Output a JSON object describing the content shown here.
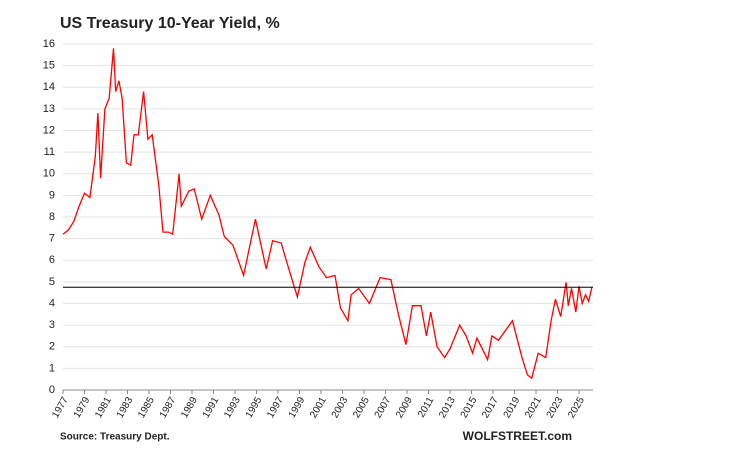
{
  "chart_data": {
    "type": "line",
    "title": "US Treasury 10-Year Yield, %",
    "source": "Source: Treasury Dept.",
    "credit": "WOLFSTREET.com",
    "xlim": [
      1977,
      2026.3
    ],
    "xticks": [
      1977,
      1979,
      1981,
      1983,
      1985,
      1987,
      1989,
      1991,
      1993,
      1995,
      1997,
      1999,
      2001,
      2003,
      2005,
      2007,
      2009,
      2011,
      2013,
      2015,
      2017,
      2019,
      2021,
      2023,
      2025
    ],
    "ylim": [
      0,
      16
    ],
    "yticks": [
      0,
      1,
      2,
      3,
      4,
      5,
      6,
      7,
      8,
      9,
      10,
      11,
      12,
      13,
      14,
      15,
      16
    ],
    "grid": true,
    "hline": 4.75,
    "series": [
      {
        "color": "#ff0000",
        "x": [
          1977.0,
          1977.5,
          1978.0,
          1978.5,
          1979.0,
          1979.5,
          1980.0,
          1980.25,
          1980.5,
          1980.9,
          1981.3,
          1981.7,
          1981.9,
          1982.2,
          1982.5,
          1982.9,
          1983.3,
          1983.6,
          1984.0,
          1984.5,
          1984.9,
          1985.3,
          1985.9,
          1986.3,
          1986.8,
          1987.2,
          1987.8,
          1988.0,
          1988.7,
          1989.2,
          1989.9,
          1990.7,
          1991.5,
          1992.0,
          1992.8,
          1993.8,
          1994.9,
          1995.9,
          1996.5,
          1997.3,
          1998.0,
          1998.8,
          1999.5,
          2000.0,
          2000.8,
          2001.5,
          2002.3,
          2002.8,
          2003.5,
          2003.8,
          2004.5,
          2005.5,
          2006.5,
          2007.5,
          2008.2,
          2008.9,
          2009.5,
          2010.3,
          2010.8,
          2011.2,
          2011.8,
          2012.5,
          2013.0,
          2013.9,
          2014.5,
          2015.1,
          2015.5,
          2016.5,
          2016.9,
          2017.5,
          2018.8,
          2019.7,
          2020.2,
          2020.6,
          2021.2,
          2021.9,
          2022.4,
          2022.8,
          2023.3,
          2023.8,
          2024.0,
          2024.3,
          2024.7,
          2025.0,
          2025.3,
          2025.6,
          2025.9,
          2026.2
        ],
        "values": [
          7.2,
          7.4,
          7.8,
          8.5,
          9.1,
          8.9,
          10.8,
          12.8,
          9.8,
          13.0,
          13.5,
          15.8,
          13.8,
          14.3,
          13.5,
          10.5,
          10.4,
          11.8,
          11.8,
          13.8,
          11.6,
          11.8,
          9.5,
          7.3,
          7.3,
          7.2,
          10.0,
          8.5,
          9.2,
          9.3,
          7.9,
          9.0,
          8.1,
          7.1,
          6.7,
          5.3,
          7.9,
          5.6,
          6.9,
          6.8,
          5.6,
          4.3,
          5.9,
          6.6,
          5.7,
          5.2,
          5.3,
          3.8,
          3.2,
          4.4,
          4.7,
          4.0,
          5.2,
          5.1,
          3.5,
          2.1,
          3.9,
          3.9,
          2.5,
          3.6,
          2.0,
          1.5,
          1.9,
          3.0,
          2.5,
          1.7,
          2.4,
          1.4,
          2.5,
          2.3,
          3.2,
          1.5,
          0.7,
          0.55,
          1.7,
          1.5,
          3.2,
          4.2,
          3.4,
          4.98,
          3.9,
          4.7,
          3.6,
          4.8,
          4.0,
          4.4,
          4.1,
          4.75
        ]
      }
    ]
  }
}
